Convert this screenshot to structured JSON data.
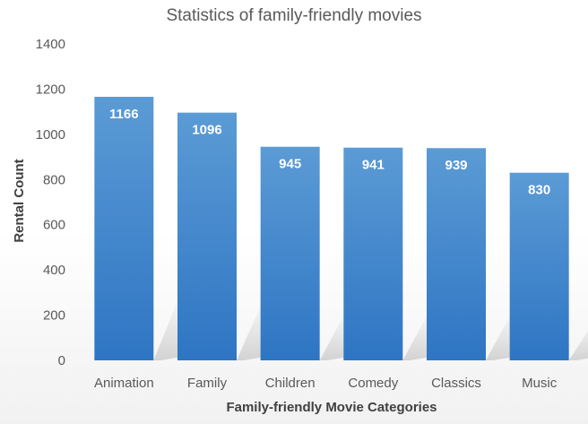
{
  "chart_data": {
    "type": "bar",
    "title": "Statistics of family-friendly movies",
    "xlabel": "Family-friendly Movie Categories",
    "ylabel": "Rental Count",
    "categories": [
      "Animation",
      "Family",
      "Children",
      "Comedy",
      "Classics",
      "Music"
    ],
    "values": [
      1166,
      1096,
      945,
      941,
      939,
      830
    ],
    "data_labels": [
      "1166",
      "1096",
      "945",
      "941",
      "939",
      "830"
    ],
    "ylim": [
      0,
      1400
    ],
    "yticks": [
      0,
      200,
      400,
      600,
      800,
      1000,
      1200,
      1400
    ],
    "ytick_labels": [
      "0",
      "200",
      "400",
      "600",
      "800",
      "1000",
      "1200",
      "1400"
    ],
    "grid": false,
    "legend": "none",
    "colors": {
      "bar_top": "#5B9BD5",
      "bar_bottom": "#2E75C3",
      "bar_label": "#FFFFFF",
      "text": "#595959",
      "axis_title": "#404040"
    }
  }
}
